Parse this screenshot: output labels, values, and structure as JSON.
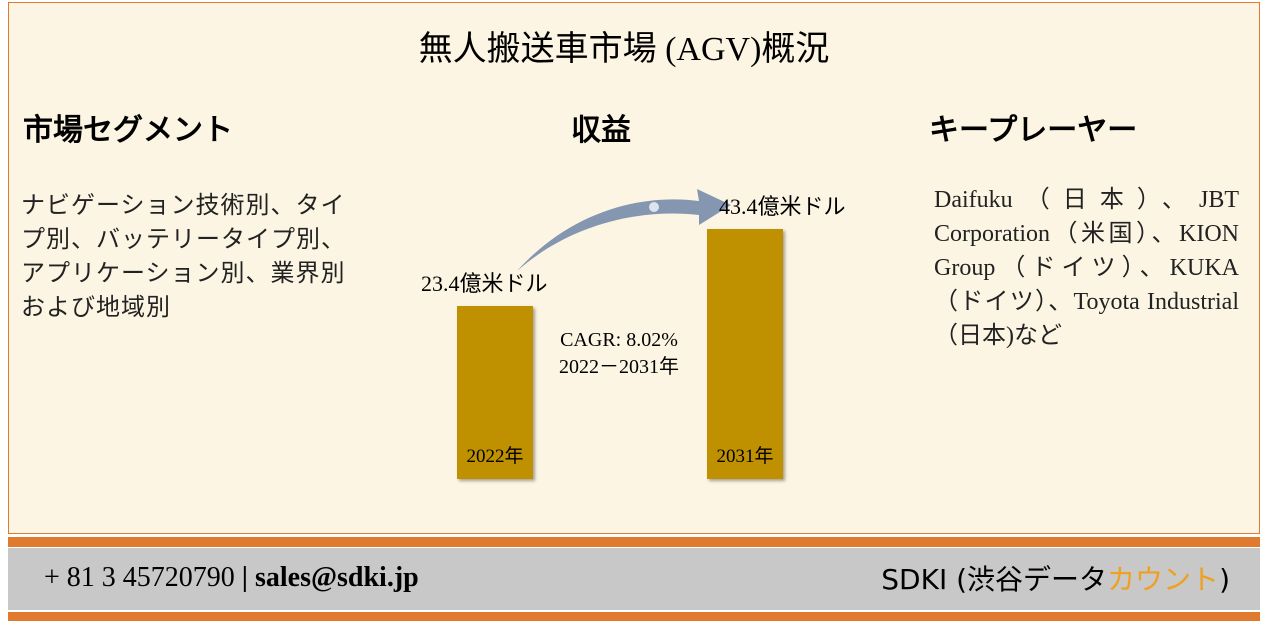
{
  "header": {
    "title": "無人搬送車市場 (AGV)概況"
  },
  "segments": {
    "title": "市場セグメント",
    "text": "ナビゲーション技術別、タイプ別、バッテリータイプ別、アプリケーション別、業界別および地域別"
  },
  "revenue": {
    "title": "収益",
    "categories": [
      "2022年",
      "2031年"
    ],
    "values": [
      23.4,
      43.4
    ],
    "value_labels": [
      "23.4億米ドル",
      "43.4億米ドル"
    ],
    "cagr": "CAGR: 8.02%",
    "period": "2022－2031年",
    "color": "#bf9000"
  },
  "players": {
    "title": "キープレーヤー",
    "text": "Daifuku（日本）、JBT Corporation（米国）、KION Group（ドイツ）、KUKA（ドイツ）、Toyota Industrial（日本)など"
  },
  "footer": {
    "phone": "+ 81 3 45720790",
    "separator": "|",
    "email": "sales@sdki.jp",
    "brand": "SDKI (渋谷データ",
    "brand_highlight": "カウント",
    "brand_end": ")"
  }
}
